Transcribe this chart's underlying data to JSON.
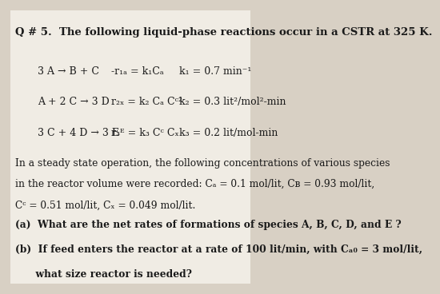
{
  "bg_color": "#d8d0c4",
  "paper_color": "#f0ece4",
  "title_line": "Q # 5.  The following liquid-phase reactions occur in a CSTR at 325 K.",
  "reactions": [
    {
      "eq": "3 A → B + C",
      "rate": "-r₁ₐ = k₁Cₐ",
      "k": "k₁ = 0.7 min⁻¹"
    },
    {
      "eq": "A + 2 C → 3 D",
      "rate": "r₂ₓ = k₂ Cₐ Cᶜ²",
      "k": "k₂ = 0.3 lit²/mol²-min"
    },
    {
      "eq": "3 C + 4 D → 3 E",
      "rate": "r₃ᴱ = k₃ Cᶜ Cₓ",
      "k": "k₃ = 0.2 lit/mol-min"
    }
  ],
  "steady_state_text": [
    "In a steady state operation, the following concentrations of various species",
    "in the reactor volume were recorded: Cₐ = 0.1 mol/lit, Cʙ = 0.93 mol/lit,",
    "Cᶜ = 0.51 mol/lit, Cₓ = 0.049 mol/lit."
  ],
  "parts": [
    "(a)  What are the net rates of formations of species A, B, C, D, and E ?",
    "(b)  If feed enters the reactor at a rate of 100 lit/min, with Cₐ₀ = 3 mol/lit,",
    "      what size reactor is needed?"
  ],
  "font_size_title": 9.5,
  "font_size_body": 8.8,
  "font_size_reactions": 9.0
}
